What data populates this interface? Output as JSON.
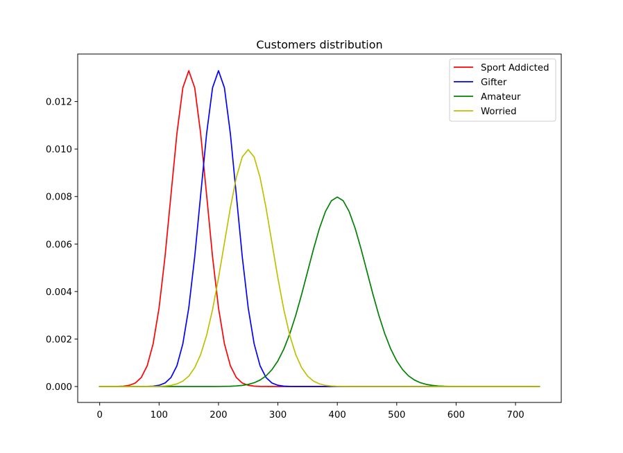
{
  "chart_data": {
    "type": "line",
    "title": "Customers distribution",
    "xlabel": "",
    "ylabel": "",
    "xlim": [
      -37,
      777
    ],
    "ylim": [
      -0.00067,
      0.014
    ],
    "xticks": [
      0,
      100,
      200,
      300,
      400,
      500,
      600,
      700
    ],
    "xtick_labels": [
      "0",
      "100",
      "200",
      "300",
      "400",
      "500",
      "600",
      "700"
    ],
    "yticks": [
      0.0,
      0.002,
      0.004,
      0.006,
      0.008,
      0.01,
      0.012
    ],
    "ytick_labels": [
      "0.000",
      "0.002",
      "0.004",
      "0.006",
      "0.008",
      "0.010",
      "0.012"
    ],
    "grid": false,
    "legend_position": "upper right",
    "x": {
      "start": 0,
      "stop": 740,
      "step": 10
    },
    "series": [
      {
        "name": "Sport Addicted",
        "color": "#ff0000",
        "distribution": "normal",
        "mean": 150,
        "std": 30
      },
      {
        "name": "Gifter",
        "color": "#0000ff",
        "distribution": "normal",
        "mean": 200,
        "std": 30
      },
      {
        "name": "Amateur",
        "color": "#008000",
        "distribution": "normal",
        "mean": 400,
        "std": 50
      },
      {
        "name": "Worried",
        "color": "#bfbf00",
        "distribution": "normal",
        "mean": 250,
        "std": 40
      }
    ]
  }
}
